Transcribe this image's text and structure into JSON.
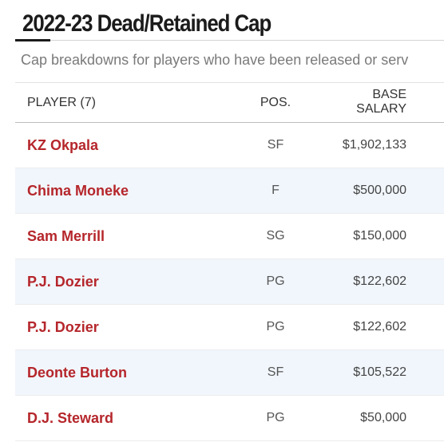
{
  "section": {
    "title": "2022-23 Dead/Retained Cap",
    "subtitle": "Cap breakdowns for players who have been released or serv"
  },
  "table": {
    "columns": {
      "player": "PLAYER (7)",
      "pos": "POS.",
      "salary_line1": "BASE",
      "salary_line2": "SALARY"
    },
    "rows": [
      {
        "player": "KZ Okpala",
        "pos": "SF",
        "salary": "$1,902,133"
      },
      {
        "player": "Chima Moneke",
        "pos": "F",
        "salary": "$500,000"
      },
      {
        "player": "Sam Merrill",
        "pos": "SG",
        "salary": "$150,000"
      },
      {
        "player": "P.J. Dozier",
        "pos": "PG",
        "salary": "$122,602"
      },
      {
        "player": "P.J. Dozier",
        "pos": "PG",
        "salary": "$122,602"
      },
      {
        "player": "Deonte Burton",
        "pos": "SF",
        "salary": "$105,522"
      },
      {
        "player": "D.J. Steward",
        "pos": "PG",
        "salary": "$50,000"
      }
    ]
  },
  "colors": {
    "player_link": "#b5262b",
    "alt_row": "#f1f6fc",
    "title": "#1b1b1b"
  }
}
